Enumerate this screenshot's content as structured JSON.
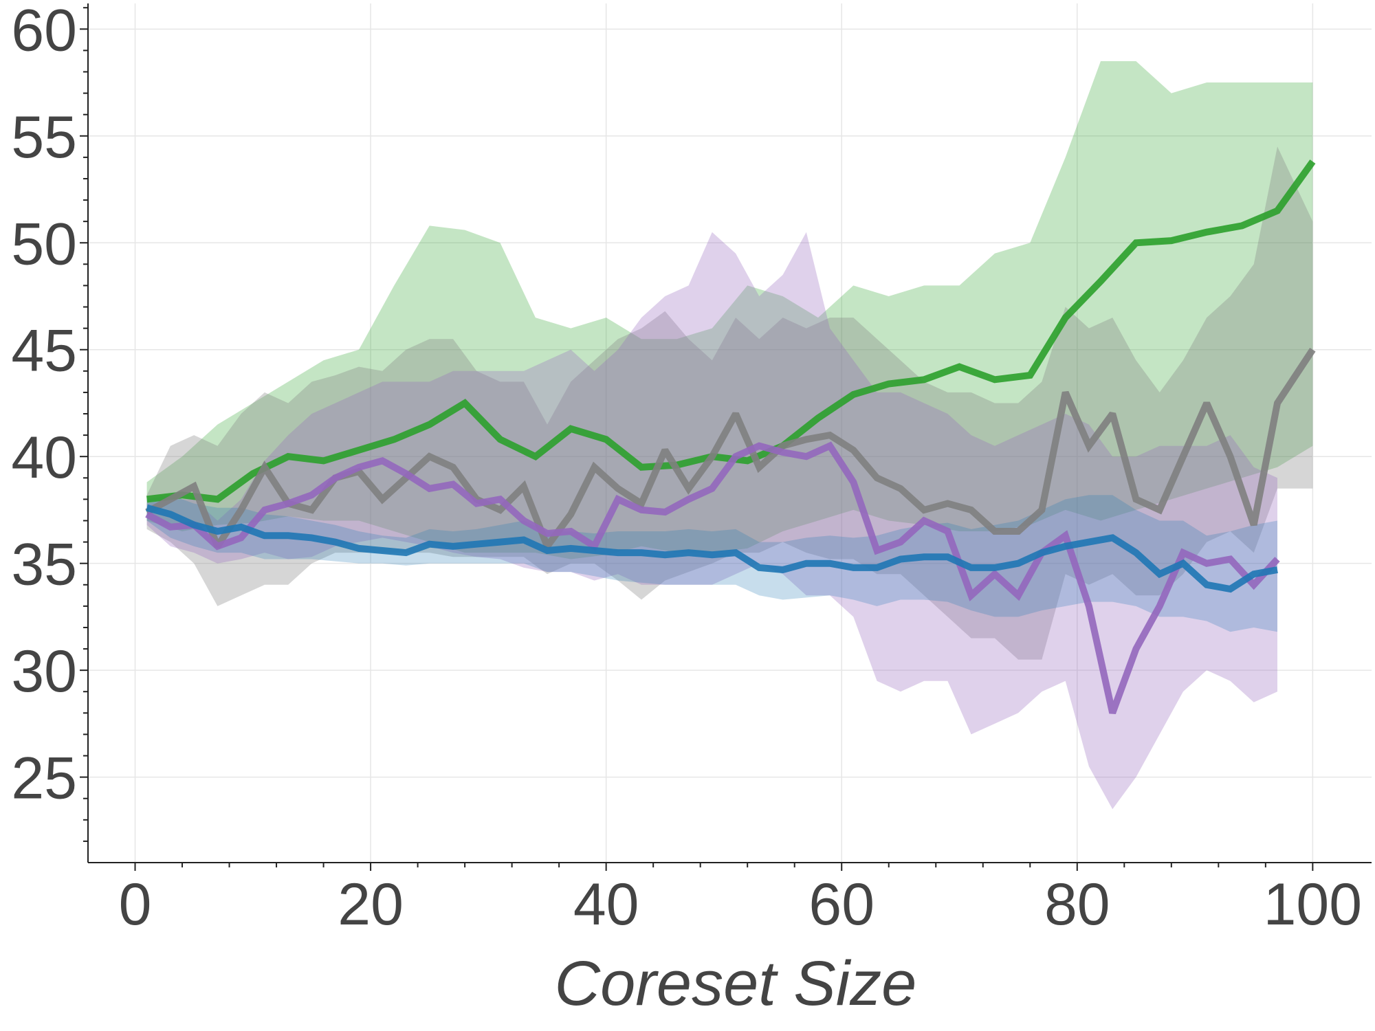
{
  "chart_data": {
    "type": "line",
    "title": "",
    "xlabel": "Coreset Size",
    "ylabel": "",
    "xlim": [
      -4,
      105
    ],
    "ylim": [
      21,
      61.2
    ],
    "xticks": [
      0,
      20,
      40,
      60,
      80,
      100
    ],
    "yticks": [
      25,
      30,
      35,
      40,
      45,
      50,
      55,
      60
    ],
    "grid": true,
    "legend": "none",
    "series": [
      {
        "color": "#2ca02c",
        "fill_opacity": 0.28,
        "line_width": 10,
        "x": [
          1,
          4,
          7,
          10,
          13,
          16,
          19,
          22,
          25,
          28,
          31,
          34,
          37,
          40,
          43,
          46,
          49,
          52,
          55,
          58,
          61,
          64,
          67,
          70,
          73,
          76,
          79,
          82,
          85,
          88,
          91,
          94,
          97,
          100
        ],
        "y": [
          38.0,
          38.2,
          38.0,
          39.2,
          40.0,
          39.8,
          40.3,
          40.8,
          41.5,
          42.5,
          40.8,
          40.0,
          41.3,
          40.8,
          39.5,
          39.6,
          40.0,
          39.8,
          40.5,
          41.8,
          42.9,
          43.4,
          43.6,
          44.2,
          43.6,
          43.8,
          46.5,
          48.2,
          50.0,
          50.1,
          50.5,
          50.8,
          51.5,
          53.8
        ],
        "lower": [
          37.0,
          36.5,
          36.8,
          36.9,
          37.2,
          37.0,
          37.0,
          36.5,
          36.0,
          35.5,
          35.5,
          35.5,
          35.2,
          35.4,
          35.8,
          35.5,
          35.5,
          35.7,
          36.5,
          37.0,
          37.5,
          37.0,
          36.8,
          36.5,
          36.5,
          36.8,
          37.5,
          37.0,
          37.5,
          38.0,
          38.5,
          39.0,
          39.5,
          40.5
        ],
        "upper": [
          38.8,
          40.0,
          41.5,
          42.5,
          43.5,
          44.5,
          45.0,
          48.0,
          50.8,
          50.6,
          50.0,
          46.5,
          46.0,
          46.5,
          45.5,
          45.5,
          46.0,
          48.0,
          47.5,
          46.5,
          48.0,
          47.5,
          48.0,
          48.0,
          49.5,
          50.0,
          54.0,
          58.5,
          58.5,
          57.0,
          57.5,
          57.5,
          57.5,
          57.5
        ]
      },
      {
        "color": "#7f7f7f",
        "fill_opacity": 0.32,
        "line_width": 10,
        "x": [
          1,
          3,
          5,
          7,
          9,
          11,
          13,
          15,
          17,
          19,
          21,
          23,
          25,
          27,
          29,
          31,
          33,
          35,
          37,
          39,
          41,
          43,
          45,
          47,
          49,
          51,
          53,
          55,
          57,
          59,
          61,
          63,
          65,
          67,
          69,
          71,
          73,
          75,
          77,
          79,
          81,
          83,
          85,
          87,
          89,
          91,
          93,
          95,
          97,
          100
        ],
        "y": [
          37.4,
          38.0,
          38.6,
          35.8,
          37.5,
          39.5,
          37.8,
          37.5,
          39.0,
          39.3,
          38.0,
          39.0,
          40.0,
          39.5,
          38.0,
          37.5,
          38.6,
          35.8,
          37.3,
          39.5,
          38.5,
          37.8,
          40.3,
          38.5,
          40.0,
          42.0,
          39.5,
          40.5,
          40.8,
          41.0,
          40.3,
          39.0,
          38.5,
          37.5,
          37.8,
          37.5,
          36.5,
          36.5,
          37.5,
          43.0,
          40.5,
          42.0,
          38.0,
          37.5,
          40.0,
          42.5,
          40.0,
          36.8,
          42.5,
          45.0
        ],
        "lower": [
          36.6,
          36.0,
          35.0,
          33.0,
          33.5,
          34.0,
          34.0,
          35.0,
          35.5,
          35.5,
          35.5,
          35.5,
          35.5,
          35.3,
          35.3,
          35.3,
          35.3,
          34.5,
          35.0,
          35.0,
          34.2,
          33.3,
          34.2,
          34.6,
          35.0,
          35.5,
          35.5,
          36.0,
          35.5,
          35.2,
          35.2,
          34.5,
          34.5,
          33.5,
          32.5,
          31.5,
          31.5,
          30.5,
          30.5,
          34.5,
          34.0,
          34.5,
          33.5,
          33.5,
          34.5,
          36.0,
          36.5,
          35.5,
          38.5,
          38.5
        ],
        "upper": [
          38.2,
          40.5,
          41.0,
          40.5,
          42.0,
          43.0,
          42.5,
          43.5,
          43.8,
          44.2,
          44.0,
          45.0,
          45.5,
          45.5,
          44.0,
          43.5,
          43.5,
          41.5,
          43.5,
          44.5,
          45.5,
          46.0,
          46.8,
          45.5,
          44.5,
          46.5,
          45.5,
          46.5,
          46.0,
          46.5,
          46.5,
          45.5,
          44.5,
          43.5,
          43.0,
          43.0,
          42.5,
          42.5,
          43.5,
          47.0,
          46.0,
          46.5,
          44.5,
          43.0,
          44.5,
          46.5,
          47.5,
          49.0,
          54.5,
          51.0
        ]
      },
      {
        "color": "#9467bd",
        "fill_opacity": 0.3,
        "line_width": 10,
        "x": [
          1,
          3,
          5,
          7,
          9,
          11,
          13,
          15,
          17,
          19,
          21,
          23,
          25,
          27,
          29,
          31,
          33,
          35,
          37,
          39,
          41,
          43,
          45,
          47,
          49,
          51,
          53,
          55,
          57,
          59,
          61,
          63,
          65,
          67,
          69,
          71,
          73,
          75,
          77,
          79,
          81,
          83,
          85,
          87,
          89,
          91,
          93,
          95,
          97
        ],
        "y": [
          37.3,
          36.7,
          36.8,
          35.8,
          36.2,
          37.5,
          37.8,
          38.2,
          39.0,
          39.5,
          39.8,
          39.2,
          38.5,
          38.7,
          37.8,
          38.0,
          37.0,
          36.4,
          36.5,
          35.8,
          38.0,
          37.5,
          37.4,
          38.0,
          38.5,
          40.0,
          40.5,
          40.2,
          40.0,
          40.5,
          38.8,
          35.6,
          36.0,
          37.0,
          36.5,
          33.5,
          34.5,
          33.5,
          35.5,
          36.3,
          33.0,
          28.0,
          31.0,
          33.0,
          35.5,
          35.0,
          35.2,
          34.0,
          35.2
        ],
        "lower": [
          36.8,
          35.8,
          35.5,
          35.0,
          35.2,
          35.5,
          35.2,
          35.3,
          35.8,
          36.0,
          36.2,
          36.0,
          35.8,
          35.5,
          35.3,
          35.2,
          34.8,
          34.6,
          34.6,
          34.2,
          34.5,
          34.0,
          34.0,
          34.0,
          34.0,
          34.5,
          35.0,
          34.5,
          33.5,
          33.5,
          32.5,
          29.5,
          29.0,
          29.5,
          29.5,
          27.0,
          27.5,
          28.0,
          29.0,
          29.5,
          25.5,
          23.5,
          25.0,
          27.0,
          29.0,
          30.0,
          29.5,
          28.5,
          29.0
        ],
        "upper": [
          37.8,
          38.0,
          38.0,
          37.0,
          38.0,
          39.8,
          41.0,
          42.0,
          42.5,
          43.0,
          43.5,
          43.5,
          43.5,
          44.0,
          44.0,
          44.0,
          44.0,
          44.5,
          45.0,
          44.0,
          45.0,
          46.5,
          47.5,
          48.0,
          50.5,
          49.5,
          47.5,
          48.5,
          50.5,
          46.0,
          44.5,
          43.0,
          43.0,
          42.5,
          42.0,
          41.0,
          40.5,
          41.0,
          41.5,
          42.0,
          41.5,
          40.0,
          40.0,
          40.5,
          40.5,
          40.5,
          41.0,
          39.5,
          39.0
        ]
      },
      {
        "color": "#1f77b4",
        "fill_opacity": 0.25,
        "line_width": 10,
        "x": [
          1,
          3,
          5,
          7,
          9,
          11,
          13,
          15,
          17,
          19,
          21,
          23,
          25,
          27,
          29,
          31,
          33,
          35,
          37,
          39,
          41,
          43,
          45,
          47,
          49,
          51,
          53,
          55,
          57,
          59,
          61,
          63,
          65,
          67,
          69,
          71,
          73,
          75,
          77,
          79,
          81,
          83,
          85,
          87,
          89,
          91,
          93,
          95,
          97
        ],
        "y": [
          37.6,
          37.3,
          36.8,
          36.5,
          36.7,
          36.3,
          36.3,
          36.2,
          36.0,
          35.7,
          35.6,
          35.5,
          35.9,
          35.8,
          35.9,
          36.0,
          36.1,
          35.6,
          35.7,
          35.6,
          35.5,
          35.5,
          35.4,
          35.5,
          35.4,
          35.5,
          34.8,
          34.7,
          35.0,
          35.0,
          34.8,
          34.8,
          35.2,
          35.3,
          35.3,
          34.8,
          34.8,
          35.0,
          35.5,
          35.8,
          36.0,
          36.2,
          35.5,
          34.5,
          35.0,
          34.0,
          33.8,
          34.5,
          34.7
        ],
        "lower": [
          37.0,
          36.2,
          35.8,
          35.5,
          35.5,
          35.2,
          35.2,
          35.2,
          35.1,
          35.0,
          35.0,
          34.9,
          35.0,
          35.0,
          35.0,
          35.0,
          35.0,
          34.6,
          34.6,
          34.4,
          34.2,
          34.1,
          34.0,
          34.0,
          34.0,
          34.0,
          33.5,
          33.3,
          33.4,
          33.5,
          33.3,
          33.0,
          33.3,
          33.3,
          33.2,
          32.8,
          32.5,
          32.5,
          32.8,
          33.0,
          33.2,
          33.2,
          33.0,
          32.5,
          32.5,
          32.3,
          31.8,
          32.0,
          31.8
        ],
        "upper": [
          38.0,
          38.2,
          37.8,
          37.6,
          37.6,
          37.3,
          37.2,
          37.0,
          36.8,
          36.5,
          36.3,
          36.2,
          36.6,
          36.5,
          36.6,
          36.8,
          37.0,
          36.5,
          36.5,
          36.4,
          36.5,
          36.5,
          36.5,
          36.6,
          36.5,
          36.6,
          36.0,
          36.0,
          36.2,
          36.3,
          36.2,
          36.3,
          36.6,
          36.8,
          36.9,
          36.6,
          36.8,
          37.0,
          37.5,
          38.0,
          38.2,
          38.2,
          37.5,
          37.0,
          37.0,
          36.3,
          36.5,
          36.8,
          37.0
        ]
      }
    ]
  }
}
